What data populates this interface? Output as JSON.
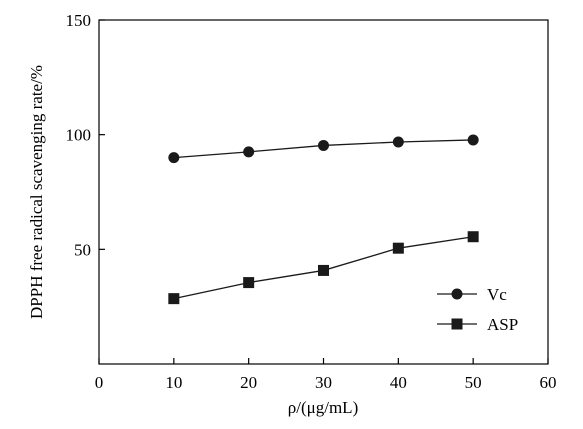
{
  "chart_data": {
    "type": "line",
    "title": "",
    "xlabel": "ρ/(μg/mL)",
    "ylabel": "DPPH free radical scavenging rate/%",
    "xlim": [
      0,
      60
    ],
    "ylim": [
      0,
      150
    ],
    "x_ticks": [
      0,
      10,
      20,
      30,
      40,
      50,
      60
    ],
    "y_ticks": [
      50,
      100,
      150
    ],
    "y_tick_labels": [
      "50",
      "100",
      "150"
    ],
    "grid": false,
    "legend_position": "bottom-right",
    "x": [
      10,
      20,
      30,
      40,
      50
    ],
    "series": [
      {
        "name": "Vc",
        "marker": "circle",
        "color": "#1a1a1a",
        "values": [
          90,
          92.5,
          95.3,
          96.8,
          97.7
        ]
      },
      {
        "name": "ASP",
        "marker": "square",
        "color": "#1a1a1a",
        "values": [
          28.5,
          35.5,
          40.8,
          50.5,
          55.5
        ]
      }
    ]
  }
}
